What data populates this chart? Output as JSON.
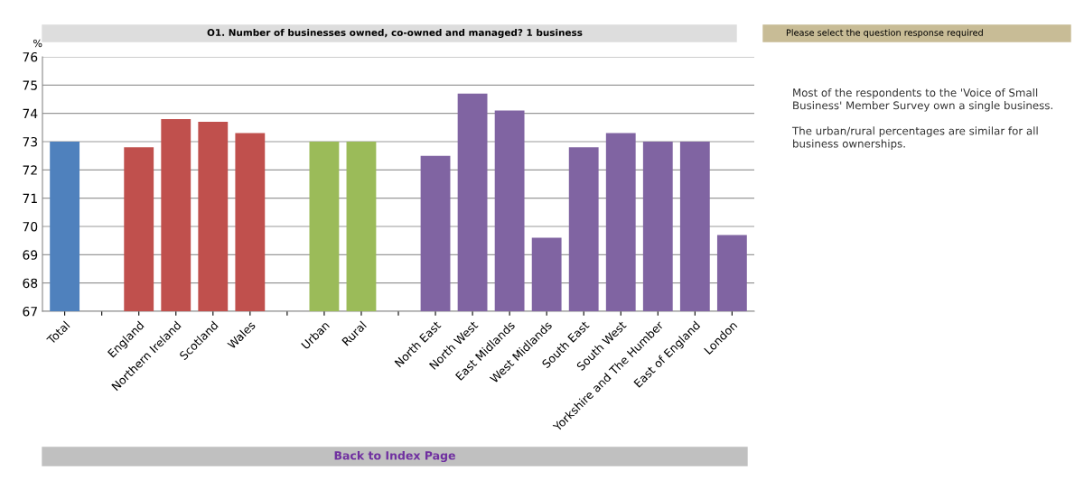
{
  "chart_data": {
    "type": "bar",
    "title": "O1. Number of businesses owned, co-owned and managed? 1 business",
    "ylabel": "%",
    "categories": [
      "Total",
      null,
      "England",
      "Northern Ireland",
      "Scotland",
      "Wales",
      null,
      "Urban",
      "Rural",
      null,
      "North East",
      "North West",
      "East Midlands",
      "West Midlands",
      "South East",
      "South West",
      "Yorkshire and The Humber",
      "East of England",
      "London"
    ],
    "values": [
      73,
      null,
      72.8,
      73.8,
      73.7,
      73.3,
      null,
      73,
      73,
      null,
      72.5,
      74.7,
      74.1,
      69.6,
      72.8,
      73.3,
      73,
      73,
      69.7
    ],
    "colors": [
      "#4f81bd",
      null,
      "#c0504d",
      "#c0504d",
      "#c0504d",
      "#c0504d",
      null,
      "#9bbb59",
      "#9bbb59",
      null,
      "#8064a2",
      "#8064a2",
      "#8064a2",
      "#8064a2",
      "#8064a2",
      "#8064a2",
      "#8064a2",
      "#8064a2",
      "#8064a2"
    ],
    "ylim": [
      67,
      76
    ],
    "yticks": [
      67,
      68,
      69,
      70,
      71,
      72,
      73,
      74,
      75,
      76
    ],
    "grid": "y",
    "legend": false,
    "annotations": [
      "Please select the question response required",
      "Most of the respondents to the 'Voice of Small Business' Member Survey own a single business.\n\nThe urban/rural percentages are similar for all business ownerships.",
      "Back to Index Page"
    ]
  }
}
